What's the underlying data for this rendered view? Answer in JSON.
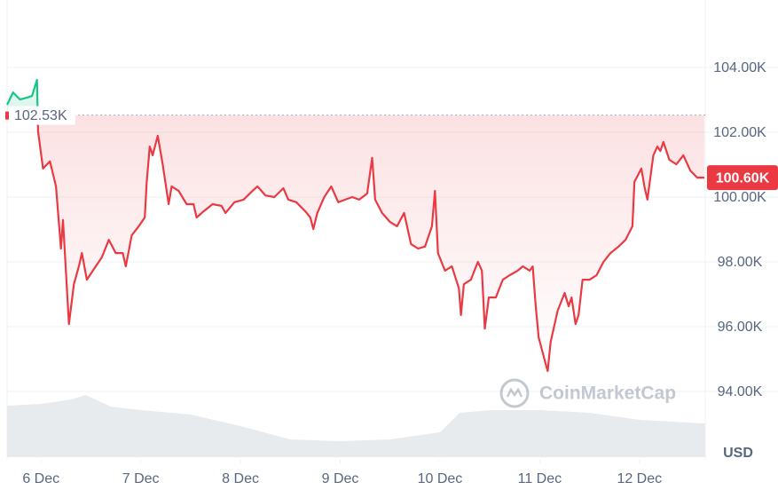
{
  "chart_data": {
    "type": "line",
    "x": [
      5.66,
      5.72,
      5.79,
      5.86,
      5.91,
      5.96,
      5.97,
      6.02,
      6.09,
      6.15,
      6.2,
      6.22,
      6.28,
      6.33,
      6.38,
      6.41,
      6.46,
      6.52,
      6.61,
      6.68,
      6.75,
      6.82,
      6.85,
      6.91,
      6.98,
      7.04,
      7.06,
      7.09,
      7.12,
      7.17,
      7.22,
      7.28,
      7.31,
      7.38,
      7.46,
      7.53,
      7.56,
      7.63,
      7.72,
      7.81,
      7.85,
      7.94,
      8.03,
      8.12,
      8.17,
      8.25,
      8.34,
      8.43,
      8.48,
      8.56,
      8.65,
      8.7,
      8.73,
      8.77,
      8.84,
      8.91,
      8.98,
      9.05,
      9.12,
      9.19,
      9.27,
      9.32,
      9.35,
      9.42,
      9.5,
      9.57,
      9.64,
      9.71,
      9.78,
      9.85,
      9.92,
      9.95,
      9.98,
      10.05,
      10.12,
      10.19,
      10.21,
      10.24,
      10.31,
      10.38,
      10.42,
      10.45,
      10.49,
      10.56,
      10.63,
      10.7,
      10.78,
      10.83,
      10.9,
      10.93,
      10.96,
      10.99,
      11.06,
      11.08,
      11.11,
      11.18,
      11.25,
      11.29,
      11.32,
      11.36,
      11.39,
      11.43,
      11.5,
      11.57,
      11.64,
      11.71,
      11.79,
      11.86,
      11.93,
      11.95,
      12.02,
      12.05,
      12.08,
      12.14,
      12.18,
      12.21,
      12.24,
      12.3,
      12.37,
      12.44,
      12.51,
      12.58,
      12.65
    ],
    "values": [
      102850,
      103230,
      103010,
      103070,
      103120,
      103620,
      102030,
      100880,
      101100,
      100330,
      98410,
      99290,
      96080,
      97310,
      97860,
      98270,
      97450,
      97730,
      98140,
      98680,
      98270,
      98270,
      97860,
      98820,
      99100,
      99370,
      100470,
      101560,
      101290,
      101890,
      101010,
      99780,
      100330,
      100190,
      99780,
      99780,
      99370,
      99560,
      99780,
      99730,
      99510,
      99840,
      99920,
      100190,
      100330,
      100050,
      100000,
      100270,
      99920,
      99840,
      99560,
      99370,
      99010,
      99510,
      100000,
      100330,
      99840,
      99920,
      100000,
      99920,
      100110,
      101210,
      99920,
      99510,
      99230,
      99100,
      99510,
      98550,
      98410,
      98470,
      99100,
      100190,
      98270,
      97730,
      97860,
      97180,
      96360,
      97310,
      97450,
      98000,
      97730,
      95940,
      96900,
      96900,
      97450,
      97590,
      97730,
      97860,
      97730,
      97860,
      96630,
      95670,
      94850,
      94630,
      95530,
      96490,
      97040,
      96630,
      96900,
      96080,
      96360,
      97450,
      97450,
      97590,
      98000,
      98270,
      98470,
      98680,
      99100,
      100470,
      100880,
      100330,
      99920,
      101290,
      101560,
      101420,
      101700,
      101150,
      101010,
      101290,
      100820,
      100600,
      100600
    ],
    "colors": {
      "above": "#16c784",
      "below": "#ea3943"
    },
    "reference": {
      "value": 102530,
      "label": "102.53K"
    },
    "last_price": {
      "value": 100600,
      "label": "100.60K"
    },
    "volume": {
      "x": [
        5.66,
        6.0,
        6.3,
        6.45,
        6.7,
        7.0,
        7.5,
        8.0,
        8.5,
        9.0,
        9.5,
        10.0,
        10.2,
        10.5,
        11.0,
        11.5,
        12.0,
        12.66
      ],
      "values": [
        58,
        60,
        65,
        70,
        57,
        53,
        48,
        35,
        20,
        18,
        20,
        28,
        50,
        53,
        53,
        50,
        42,
        38
      ],
      "color": "#e8ebee"
    },
    "xlim": [
      5.66,
      12.66
    ],
    "ylim": [
      92000,
      106000
    ],
    "xticks": [
      {
        "value": 6,
        "label": "6 Dec"
      },
      {
        "value": 7,
        "label": "7 Dec"
      },
      {
        "value": 8,
        "label": "8 Dec"
      },
      {
        "value": 9,
        "label": "9 Dec"
      },
      {
        "value": 10,
        "label": "10 Dec"
      },
      {
        "value": 11,
        "label": "11 Dec"
      },
      {
        "value": 12,
        "label": "12 Dec"
      }
    ],
    "yticks": [
      {
        "value": 94000,
        "label": "94.00K"
      },
      {
        "value": 96000,
        "label": "96.00K"
      },
      {
        "value": 98000,
        "label": "98.00K"
      },
      {
        "value": 100000,
        "label": "100.00K"
      },
      {
        "value": 102000,
        "label": "102.00K"
      },
      {
        "value": 104000,
        "label": "104.00K"
      }
    ],
    "currency": "USD",
    "watermark": "CoinMarketCap",
    "grid": true
  }
}
